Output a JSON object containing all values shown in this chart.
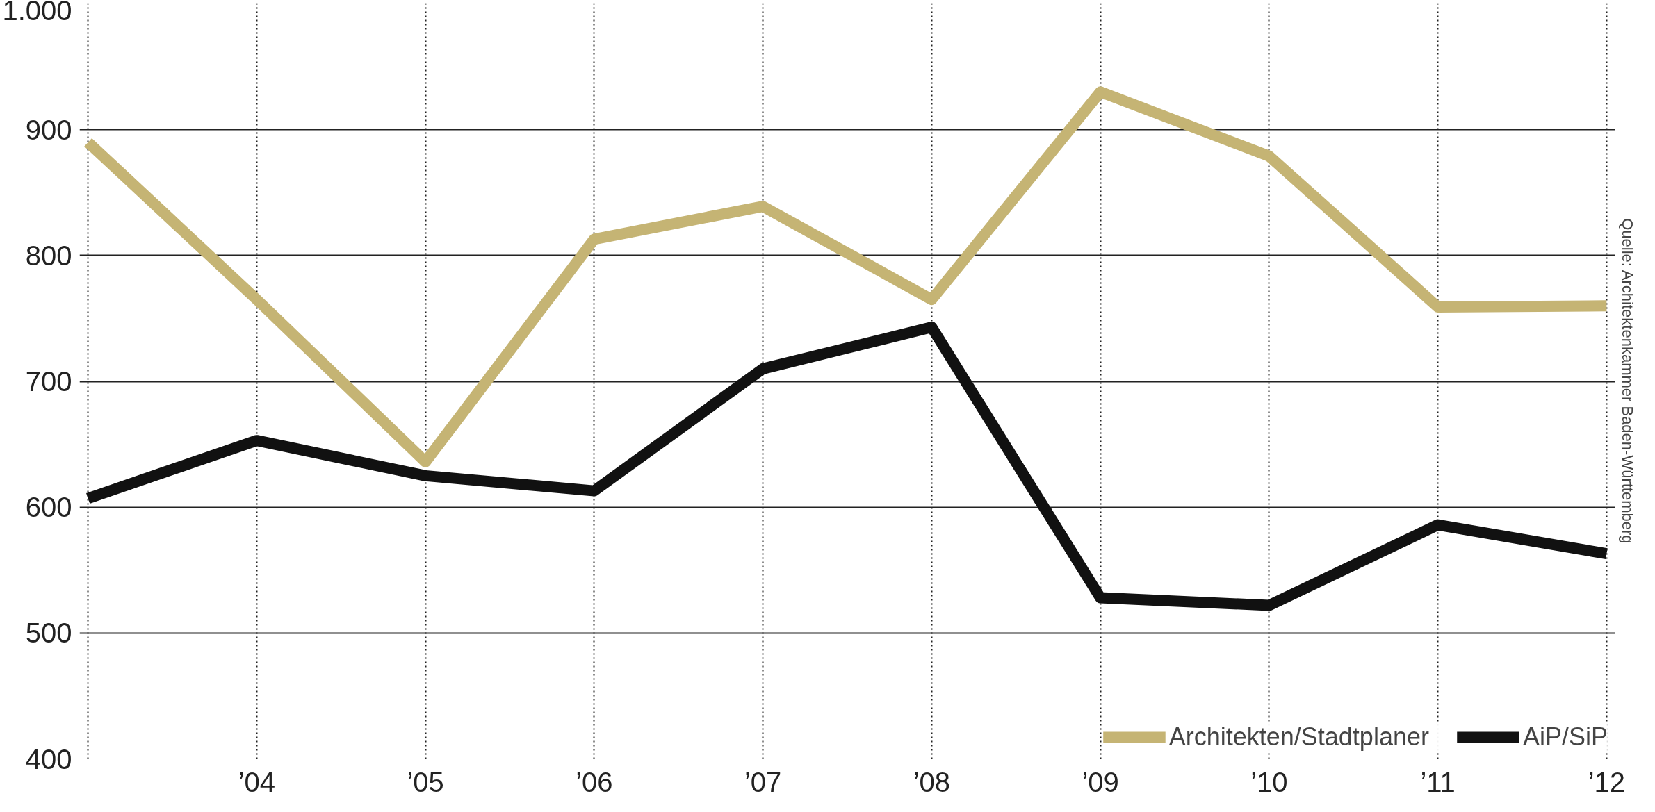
{
  "chart_data": {
    "type": "line",
    "categories": [
      null,
      "’04",
      "’05",
      "’06",
      "’07",
      "’08",
      "’09",
      "’10",
      "’11",
      "’12"
    ],
    "series": [
      {
        "name": "Architekten/Stadtplaner",
        "color": "#c5b474",
        "values": [
          890,
          765,
          636,
          813,
          839,
          765,
          930,
          879,
          759,
          760
        ]
      },
      {
        "name": "AiP/SiP",
        "color": "#111111",
        "values": [
          607,
          653,
          625,
          613,
          710,
          743,
          528,
          522,
          586,
          563
        ]
      }
    ],
    "ylim": [
      400,
      1000
    ],
    "yticks": [
      400,
      500,
      600,
      700,
      800,
      900,
      {
        "value": 1000,
        "label": "1.000"
      }
    ],
    "grid": true,
    "legend": "bottom right",
    "line_style": "solid",
    "marker": "none",
    "annotations": [
      "Quelle: Architektenkammer Baden-Württemberg"
    ]
  }
}
